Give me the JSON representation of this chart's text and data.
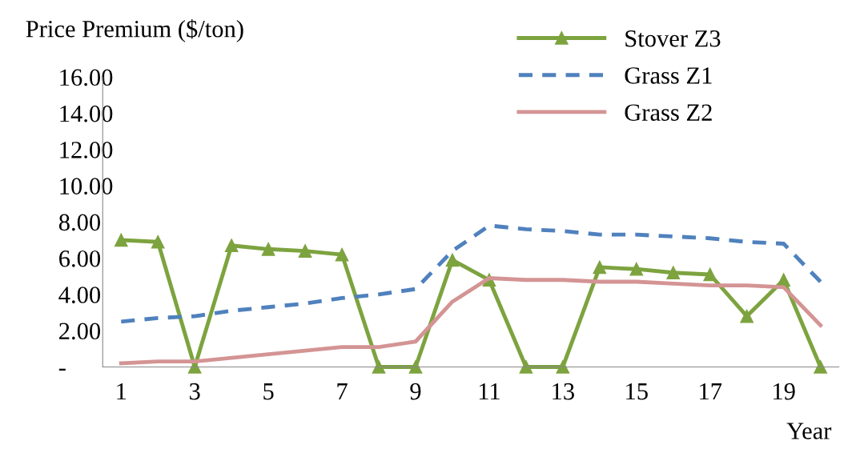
{
  "chart_data": {
    "type": "line",
    "ylabel": "Price Premium ($/ton)",
    "xlabel": "Year",
    "categories": [
      "1",
      null,
      "3",
      null,
      "5",
      null,
      "7",
      null,
      "9",
      null,
      "11",
      null,
      "13",
      null,
      "15",
      null,
      "17",
      null,
      "19",
      null
    ],
    "series": [
      {
        "name": "Stover Z3",
        "color": "#7da33f",
        "marker": "triangle",
        "line_style": "solid",
        "values": [
          7.0,
          6.9,
          0,
          6.7,
          6.5,
          6.4,
          6.2,
          0,
          0,
          5.9,
          4.8,
          0,
          0,
          5.5,
          5.4,
          5.2,
          5.1,
          2.8,
          4.8,
          0
        ]
      },
      {
        "name": "Grass Z1",
        "color": "#4f81bd",
        "marker": "none",
        "line_style": "dashed",
        "values": [
          2.5,
          2.7,
          2.8,
          3.1,
          3.3,
          3.5,
          3.8,
          4.0,
          4.3,
          6.4,
          7.8,
          7.6,
          7.5,
          7.3,
          7.3,
          7.2,
          7.1,
          6.9,
          6.8,
          4.7
        ]
      },
      {
        "name": "Grass Z2",
        "color": "#d49494",
        "marker": "none",
        "line_style": "solid",
        "values": [
          0.2,
          0.3,
          0.3,
          0.5,
          0.7,
          0.9,
          1.1,
          1.1,
          1.4,
          3.6,
          4.9,
          4.8,
          4.8,
          4.7,
          4.7,
          4.6,
          4.5,
          4.5,
          4.4,
          2.3
        ]
      }
    ],
    "ylim": [
      0,
      16
    ],
    "yticks": [
      {
        "value": 0,
        "label": "-"
      },
      {
        "value": 2,
        "label": "2.00"
      },
      {
        "value": 4,
        "label": "4.00"
      },
      {
        "value": 6,
        "label": "6.00"
      },
      {
        "value": 8,
        "label": "8.00"
      },
      {
        "value": 10,
        "label": "10.00"
      },
      {
        "value": 12,
        "label": "12.00"
      },
      {
        "value": 14,
        "label": "14.00"
      },
      {
        "value": 16,
        "label": "16.00"
      }
    ],
    "grid": false,
    "legend": "top right"
  }
}
